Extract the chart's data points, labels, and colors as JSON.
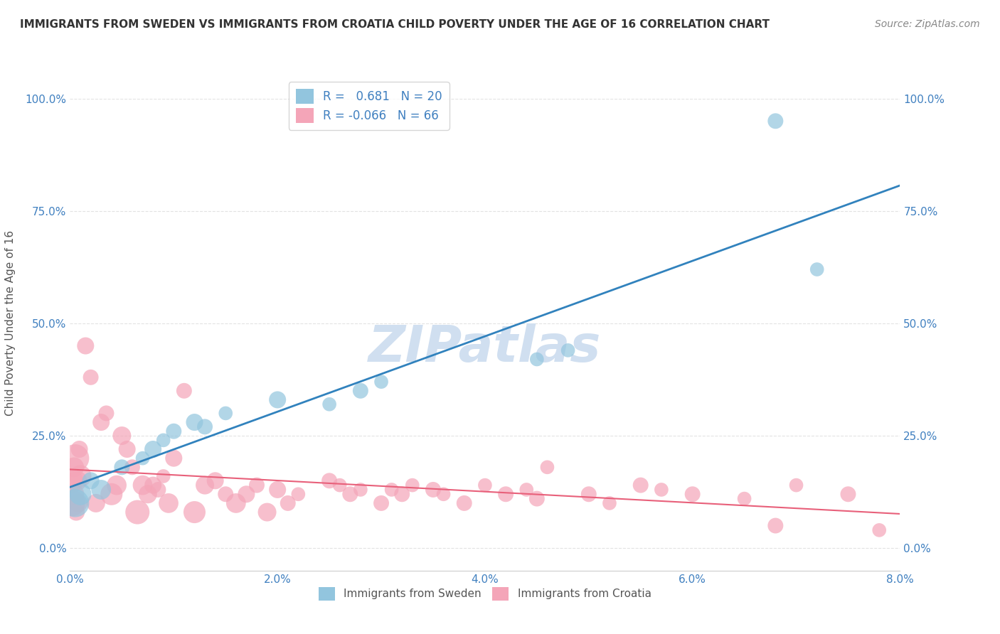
{
  "title": "IMMIGRANTS FROM SWEDEN VS IMMIGRANTS FROM CROATIA CHILD POVERTY UNDER THE AGE OF 16 CORRELATION CHART",
  "source": "Source: ZipAtlas.com",
  "xlabel": "",
  "ylabel": "Child Poverty Under the Age of 16",
  "x_tick_labels": [
    "0.0%",
    "2.0%",
    "4.0%",
    "6.0%",
    "8.0%"
  ],
  "x_tick_values": [
    0,
    0.02,
    0.04,
    0.06,
    0.08
  ],
  "y_tick_labels": [
    "0.0%",
    "25.0%",
    "50.0%",
    "75.0%",
    "100.0%"
  ],
  "y_tick_values": [
    0,
    0.25,
    0.5,
    0.75,
    1.0
  ],
  "xlim": [
    0,
    0.08
  ],
  "ylim": [
    -0.05,
    1.05
  ],
  "sweden_R": 0.681,
  "sweden_N": 20,
  "croatia_R": -0.066,
  "croatia_N": 66,
  "sweden_color": "#92c5de",
  "croatia_color": "#f4a5b8",
  "sweden_line_color": "#3182bd",
  "croatia_line_color": "#e8607a",
  "watermark": "ZIPatlas",
  "watermark_color": "#d0dff0",
  "background_color": "#ffffff",
  "grid_color": "#e0e0e0",
  "title_color": "#333333",
  "axis_label_color": "#555555",
  "tick_label_color": "#4080c0",
  "legend_label1": "Immigrants from Sweden",
  "legend_label2": "Immigrants from Croatia",
  "sweden_x": [
    0.0005,
    0.001,
    0.002,
    0.003,
    0.005,
    0.007,
    0.008,
    0.009,
    0.01,
    0.012,
    0.013,
    0.015,
    0.02,
    0.025,
    0.028,
    0.03,
    0.045,
    0.048,
    0.068,
    0.072
  ],
  "sweden_y": [
    0.1,
    0.12,
    0.15,
    0.13,
    0.18,
    0.2,
    0.22,
    0.24,
    0.26,
    0.28,
    0.27,
    0.3,
    0.33,
    0.32,
    0.35,
    0.37,
    0.42,
    0.44,
    0.95,
    0.62
  ],
  "sweden_size": [
    800,
    500,
    300,
    400,
    250,
    200,
    300,
    200,
    250,
    300,
    250,
    200,
    300,
    200,
    250,
    200,
    200,
    200,
    250,
    200
  ],
  "croatia_x": [
    0.0001,
    0.0002,
    0.0003,
    0.0004,
    0.0005,
    0.0006,
    0.0007,
    0.0008,
    0.0009,
    0.001,
    0.0015,
    0.002,
    0.0025,
    0.003,
    0.0035,
    0.004,
    0.0045,
    0.005,
    0.0055,
    0.006,
    0.0065,
    0.007,
    0.0075,
    0.008,
    0.0085,
    0.009,
    0.0095,
    0.01,
    0.011,
    0.012,
    0.013,
    0.014,
    0.015,
    0.016,
    0.017,
    0.018,
    0.019,
    0.02,
    0.021,
    0.022,
    0.025,
    0.026,
    0.027,
    0.028,
    0.03,
    0.031,
    0.032,
    0.033,
    0.035,
    0.036,
    0.038,
    0.04,
    0.042,
    0.044,
    0.045,
    0.046,
    0.05,
    0.052,
    0.055,
    0.057,
    0.06,
    0.065,
    0.068,
    0.07,
    0.075,
    0.078
  ],
  "croatia_y": [
    0.15,
    0.1,
    0.12,
    0.18,
    0.2,
    0.08,
    0.15,
    0.1,
    0.22,
    0.16,
    0.45,
    0.38,
    0.1,
    0.28,
    0.3,
    0.12,
    0.14,
    0.25,
    0.22,
    0.18,
    0.08,
    0.14,
    0.12,
    0.14,
    0.13,
    0.16,
    0.1,
    0.2,
    0.35,
    0.08,
    0.14,
    0.15,
    0.12,
    0.1,
    0.12,
    0.14,
    0.08,
    0.13,
    0.1,
    0.12,
    0.15,
    0.14,
    0.12,
    0.13,
    0.1,
    0.13,
    0.12,
    0.14,
    0.13,
    0.12,
    0.1,
    0.14,
    0.12,
    0.13,
    0.11,
    0.18,
    0.12,
    0.1,
    0.14,
    0.13,
    0.12,
    0.11,
    0.05,
    0.14,
    0.12,
    0.04
  ],
  "croatia_size": [
    600,
    700,
    500,
    400,
    800,
    300,
    400,
    350,
    300,
    500,
    300,
    250,
    350,
    300,
    250,
    500,
    400,
    350,
    300,
    250,
    600,
    400,
    350,
    300,
    250,
    200,
    400,
    300,
    250,
    500,
    350,
    300,
    250,
    400,
    300,
    250,
    350,
    300,
    250,
    200,
    250,
    200,
    250,
    200,
    250,
    200,
    250,
    200,
    250,
    200,
    250,
    200,
    250,
    200,
    250,
    200,
    250,
    200,
    250,
    200,
    250,
    200,
    250,
    200,
    250,
    200
  ]
}
